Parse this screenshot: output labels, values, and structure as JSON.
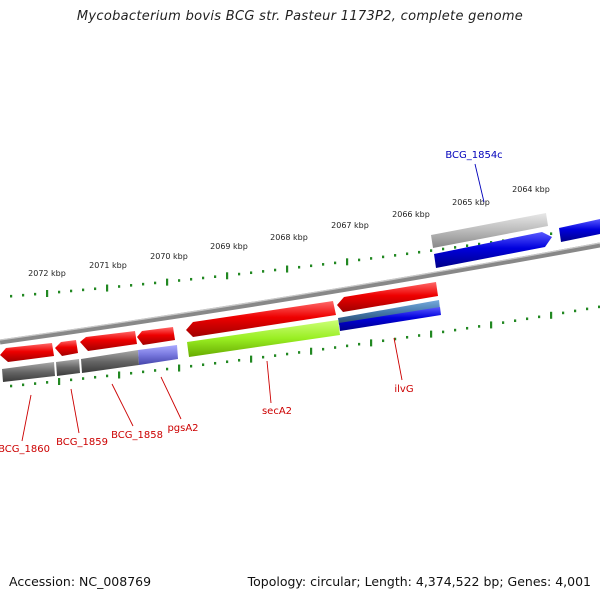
{
  "title": "Mycobacterium bovis BCG str. Pasteur 1173P2, complete genome",
  "accession_label": "Accession: NC_008769",
  "topology_label": "Topology: circular; Length: 4,374,522 bp; Genes: 4,001",
  "colors": {
    "gene_red": "#ee0000",
    "gene_blue": "#0000dd",
    "gene_gray": "#777777",
    "gene_lightgray": "#bbbbbb",
    "gene_green": "#99ee22",
    "gene_purple": "#7777dd",
    "gene_steelblue": "#4477aa",
    "tick_green": "#228822",
    "label_red": "#cc0000",
    "label_blue": "#0000bb",
    "backbone": "#888888"
  },
  "scale_labels": [
    "2072 kbp",
    "2071 kbp",
    "2070 kbp",
    "2069 kbp",
    "2068 kbp",
    "2067 kbp",
    "2066 kbp",
    "2065 kbp",
    "2064 kbp"
  ],
  "gene_labels": [
    {
      "text": "BCG_1860",
      "color": "red"
    },
    {
      "text": "BCG_1859",
      "color": "red"
    },
    {
      "text": "BCG_1858",
      "color": "red"
    },
    {
      "text": "pgsA2",
      "color": "red"
    },
    {
      "text": "secA2",
      "color": "red"
    },
    {
      "text": "ilvG",
      "color": "red"
    },
    {
      "text": "BCG_1854c",
      "color": "blue"
    }
  ]
}
